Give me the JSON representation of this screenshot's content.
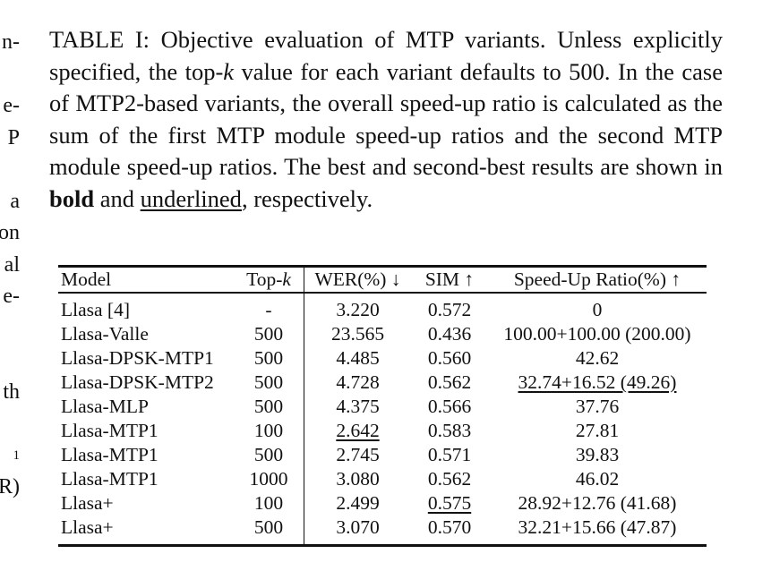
{
  "left_fragments": [
    "n-",
    "",
    "e-",
    "P",
    "",
    "a",
    "on",
    "al",
    "e-",
    "",
    "",
    "th",
    "",
    "1",
    "R)"
  ],
  "caption": {
    "part1": "TABLE I: Objective evaluation of MTP variants. Unless explicitly specified, the top-",
    "k": "k",
    "part2": " value for each variant defaults to 500. In the case of MTP2-based variants, the overall speed-up ratio is calculated as the sum of the first MTP module speed-up ratios and the second MTP module speed-up ratios. The best and second-best results are shown in ",
    "bold_word": "bold",
    "and_word": " and ",
    "underlined_word": "underlined",
    "ending": ", respectively."
  },
  "table": {
    "headers": {
      "model": "Model",
      "topk_prefix": "Top-",
      "topk_var": "k",
      "wer": "WER(%) ↓",
      "sim": "SIM ↑",
      "speed": "Speed-Up Ratio(%) ↑"
    },
    "rows": [
      {
        "model": "Llasa [4]",
        "topk": "-",
        "wer": "3.220",
        "sim": "0.572",
        "speed": "0"
      },
      {
        "model": "Llasa-Valle",
        "topk": "500",
        "wer": "23.565",
        "sim": "0.436",
        "speed": "100.00+100.00 (200.00)"
      },
      {
        "model": "Llasa-DPSK-MTP1",
        "topk": "500",
        "wer": "4.485",
        "sim": "0.560",
        "speed": "42.62"
      },
      {
        "model": "Llasa-DPSK-MTP2",
        "topk": "500",
        "wer": "4.728",
        "sim": "0.562",
        "speed": "32.74+16.52 (49.26)"
      },
      {
        "model": "Llasa-MLP",
        "topk": "500",
        "wer": "4.375",
        "sim": "0.566",
        "speed": "37.76"
      },
      {
        "model": "Llasa-MTP1",
        "topk": "100",
        "wer": "2.642",
        "sim": "0.583",
        "speed": "27.81"
      },
      {
        "model": "Llasa-MTP1",
        "topk": "500",
        "wer": "2.745",
        "sim": "0.571",
        "speed": "39.83"
      },
      {
        "model": "Llasa-MTP1",
        "topk": "1000",
        "wer": "3.080",
        "sim": "0.562",
        "speed": "46.02"
      },
      {
        "model": "Llasa+",
        "topk": "100",
        "wer": "2.499",
        "sim": "0.575",
        "speed": "28.92+12.76 (41.68)"
      },
      {
        "model": "Llasa+",
        "topk": "500",
        "wer": "3.070",
        "sim": "0.570",
        "speed": "32.21+15.66 (47.87)"
      }
    ]
  }
}
